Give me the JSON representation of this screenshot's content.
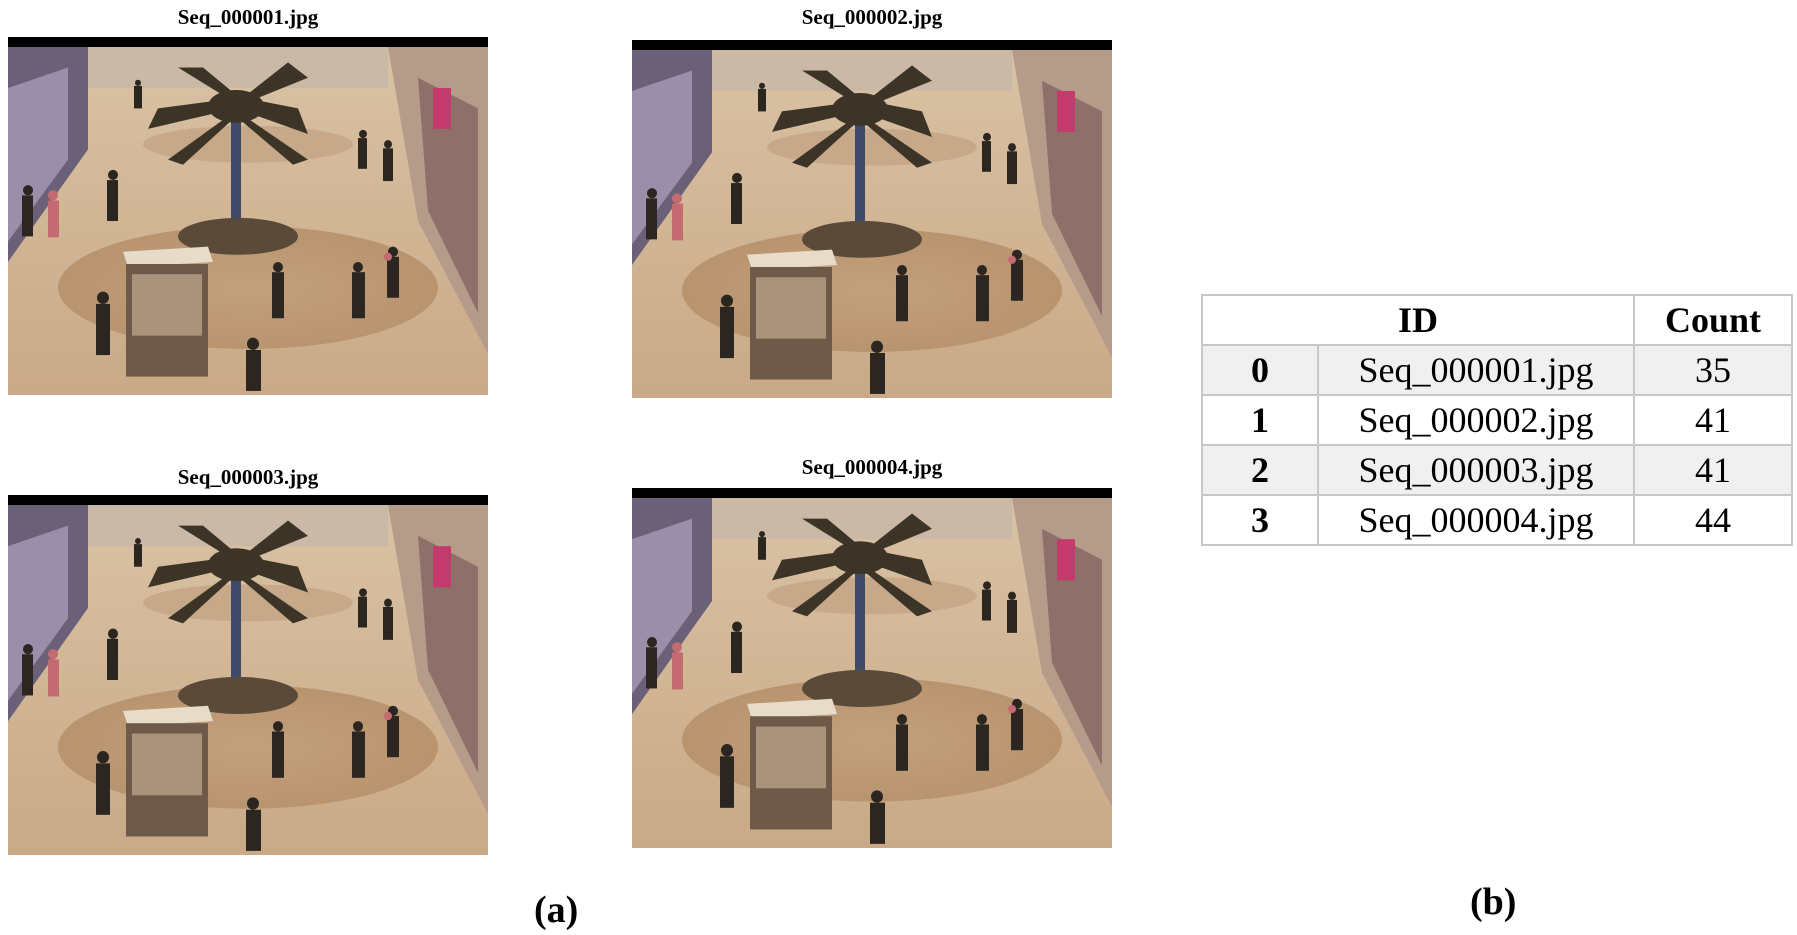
{
  "figure": {
    "panel_a": {
      "label": "(a)",
      "frames": [
        {
          "title": "Seq_000001.jpg"
        },
        {
          "title": "Seq_000002.jpg"
        },
        {
          "title": "Seq_000003.jpg"
        },
        {
          "title": "Seq_000004.jpg"
        }
      ]
    },
    "panel_b": {
      "label": "(b)",
      "table": {
        "headers": [
          "ID",
          "Count"
        ],
        "rows": [
          {
            "index": "0",
            "id": "Seq_000001.jpg",
            "count": "35"
          },
          {
            "index": "1",
            "id": "Seq_000002.jpg",
            "count": "41"
          },
          {
            "index": "2",
            "id": "Seq_000003.jpg",
            "count": "41"
          },
          {
            "index": "3",
            "id": "Seq_000004.jpg",
            "count": "44"
          }
        ]
      }
    }
  }
}
